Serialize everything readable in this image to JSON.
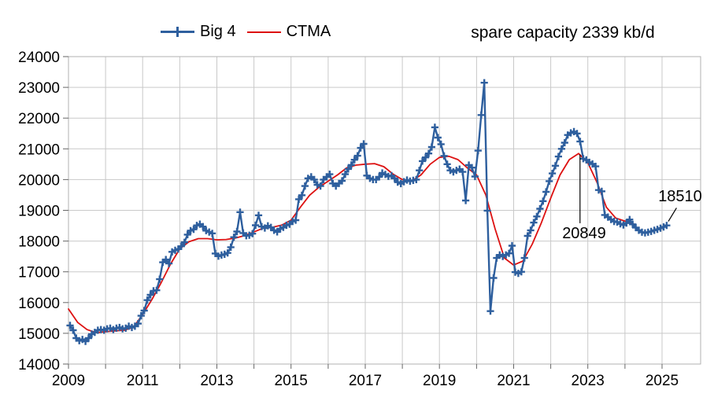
{
  "header": {
    "title": "spare capacity 2339 kb/d"
  },
  "legend": {
    "items": [
      {
        "label": "Big 4",
        "color": "#2e5f9e",
        "marker": "plus-on-line"
      },
      {
        "label": "CTMA",
        "color": "#dd1111",
        "marker": "line"
      }
    ]
  },
  "annotations": [
    {
      "text": "20849",
      "meaning": "CTMA peak value",
      "line": {
        "x": 2022.79,
        "v_from": 20820,
        "v_to": 18580
      }
    },
    {
      "text": "18510",
      "meaning": "last Big 4 value",
      "line": {
        "from": [
          2025.39,
          19080
        ],
        "to": [
          2025.17,
          18640
        ]
      }
    }
  ],
  "axes": {
    "xlim": [
      2009,
      2026.04
    ],
    "ylim": [
      14000,
      24000
    ],
    "y_ticks": [
      14000,
      15000,
      16000,
      17000,
      18000,
      19000,
      20000,
      21000,
      22000,
      23000,
      24000
    ],
    "x_gridline_years": [
      2009,
      2010,
      2011,
      2012,
      2013,
      2014,
      2015,
      2016,
      2017,
      2018,
      2019,
      2020,
      2021,
      2022,
      2023,
      2024,
      2025
    ],
    "x_tick_labels": [
      2009,
      2011,
      2013,
      2015,
      2017,
      2019,
      2021,
      2023,
      2025
    ]
  },
  "chart_data": {
    "type": "line",
    "title": "spare capacity 2339 kb/d",
    "xlabel": "",
    "ylabel": "",
    "xlim": [
      2009,
      2026.04
    ],
    "ylim": [
      14000,
      24000
    ],
    "grid": true,
    "legend_position": "top",
    "series": [
      {
        "name": "Big 4",
        "color": "#2e5f9e",
        "marker": "plus",
        "freq": "monthly",
        "start_year": 2009,
        "start_month": 1,
        "values": [
          15255,
          15100,
          14845,
          14760,
          14800,
          14740,
          14845,
          14975,
          15030,
          15100,
          15120,
          15100,
          15145,
          15165,
          15120,
          15165,
          15190,
          15145,
          15165,
          15230,
          15190,
          15230,
          15315,
          15570,
          15740,
          16080,
          16250,
          16380,
          16400,
          16760,
          17310,
          17400,
          17270,
          17650,
          17700,
          17740,
          17830,
          17960,
          18210,
          18340,
          18380,
          18510,
          18550,
          18470,
          18340,
          18295,
          18250,
          17595,
          17510,
          17545,
          17570,
          17615,
          17800,
          18125,
          18310,
          18940,
          18260,
          18175,
          18190,
          18240,
          18515,
          18840,
          18470,
          18425,
          18495,
          18445,
          18350,
          18300,
          18400,
          18445,
          18515,
          18550,
          18640,
          18680,
          19360,
          19490,
          19790,
          20040,
          20090,
          20000,
          19830,
          19790,
          20000,
          20090,
          20175,
          19875,
          19790,
          19875,
          19960,
          20175,
          20345,
          20475,
          20645,
          20775,
          21030,
          21160,
          20130,
          20040,
          20000,
          20000,
          20090,
          20215,
          20170,
          20105,
          20130,
          20040,
          19915,
          19870,
          19930,
          19985,
          19950,
          19975,
          20000,
          20300,
          20600,
          20720,
          20850,
          21060,
          21700,
          21365,
          21150,
          20770,
          20500,
          20300,
          20250,
          20300,
          20340,
          20250,
          19320,
          20470,
          20390,
          20100,
          20940,
          22100,
          23150,
          18990,
          15720,
          16800,
          17450,
          17550,
          17500,
          17550,
          17600,
          17850,
          16990,
          16950,
          17000,
          17450,
          18170,
          18350,
          18600,
          18800,
          19050,
          19300,
          19600,
          19950,
          20200,
          20450,
          20750,
          21000,
          21200,
          21450,
          21520,
          21560,
          21500,
          21240,
          20680,
          20640,
          20560,
          20510,
          20430,
          19660,
          19620,
          18850,
          18780,
          18700,
          18640,
          18620,
          18560,
          18525,
          18585,
          18700,
          18545,
          18440,
          18350,
          18290,
          18265,
          18290,
          18315,
          18350,
          18380,
          18420,
          18460,
          18510
        ]
      },
      {
        "name": "CTMA",
        "color": "#dd1111",
        "marker": "none",
        "freq": "quarterly",
        "start_year": 2009,
        "step_years": 0.25,
        "values": [
          15790,
          15350,
          15120,
          15020,
          15050,
          15080,
          15100,
          15200,
          15610,
          16100,
          16650,
          17250,
          17750,
          17980,
          18080,
          18080,
          18040,
          18050,
          18100,
          18180,
          18300,
          18420,
          18450,
          18520,
          18680,
          19100,
          19490,
          19750,
          19950,
          20150,
          20380,
          20470,
          20500,
          20520,
          20420,
          20180,
          20000,
          19950,
          20150,
          20500,
          20720,
          20760,
          20650,
          20380,
          20150,
          19500,
          18400,
          17450,
          17220,
          17350,
          17900,
          18600,
          19400,
          20150,
          20650,
          20849,
          20550,
          19900,
          19100,
          18750,
          18650,
          18550
        ]
      }
    ]
  }
}
